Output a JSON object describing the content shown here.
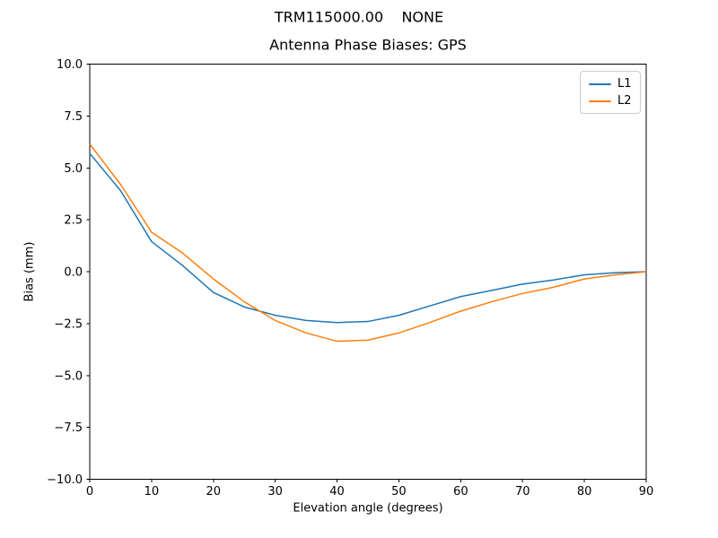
{
  "chart_data": {
    "type": "line",
    "suptitle": "TRM115000.00    NONE",
    "title": "Antenna Phase Biases: GPS",
    "xlabel": "Elevation angle (degrees)",
    "ylabel": "Bias (mm)",
    "xlim": [
      0,
      90
    ],
    "ylim": [
      -10,
      10
    ],
    "grid": false,
    "background": "#ffffff",
    "spine_color": "#000000",
    "xticks": [
      0,
      10,
      20,
      30,
      40,
      50,
      60,
      70,
      80,
      90
    ],
    "xtick_labels": [
      "0",
      "10",
      "20",
      "30",
      "40",
      "50",
      "60",
      "70",
      "80",
      "90"
    ],
    "yticks": [
      -10.0,
      -7.5,
      -5.0,
      -2.5,
      0.0,
      2.5,
      5.0,
      7.5,
      10.0
    ],
    "ytick_labels": [
      "−10.0",
      "−7.5",
      "−5.0",
      "−2.5",
      "0.0",
      "2.5",
      "5.0",
      "7.5",
      "10.0"
    ],
    "legend": {
      "position": "upper right",
      "entries": [
        "L1",
        "L2"
      ]
    },
    "x": [
      0,
      5,
      10,
      15,
      20,
      25,
      30,
      35,
      40,
      45,
      50,
      55,
      60,
      65,
      70,
      75,
      80,
      85,
      90
    ],
    "series": [
      {
        "name": "L1",
        "color": "#1f77b4",
        "values": [
          5.7,
          3.9,
          1.45,
          0.3,
          -1.0,
          -1.7,
          -2.1,
          -2.35,
          -2.45,
          -2.4,
          -2.1,
          -1.65,
          -1.2,
          -0.9,
          -0.6,
          -0.4,
          -0.15,
          -0.05,
          0.0
        ]
      },
      {
        "name": "L2",
        "color": "#ff7f0e",
        "values": [
          6.15,
          4.2,
          1.9,
          0.9,
          -0.35,
          -1.45,
          -2.35,
          -2.95,
          -3.35,
          -3.3,
          -2.95,
          -2.45,
          -1.9,
          -1.45,
          -1.05,
          -0.75,
          -0.35,
          -0.15,
          0.0
        ]
      }
    ]
  }
}
